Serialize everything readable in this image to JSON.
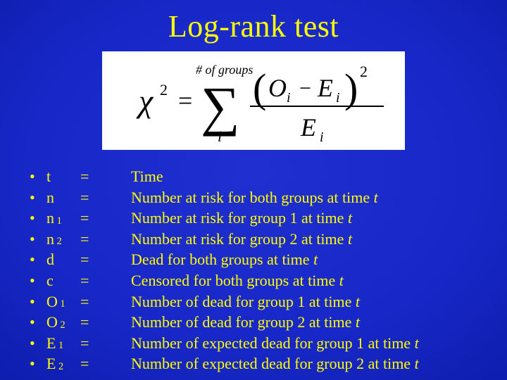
{
  "title": "Log-rank test",
  "formula": {
    "lhs": "χ",
    "lhs_sup": "2",
    "eq": "=",
    "sum_upper_label": "# of groups",
    "sum_lower": "i",
    "frac_num_open": "(",
    "frac_num_o": "O",
    "frac_num_sub1": "i",
    "frac_num_minus": "−",
    "frac_num_e": "E",
    "frac_num_sub2": "i",
    "frac_num_close": ")",
    "frac_num_sup": "2",
    "frac_den_e": "E",
    "frac_den_sub": "i",
    "background_color": "#ffffff",
    "text_color": "#000000",
    "font_family": "Times New Roman"
  },
  "definitions": [
    {
      "sym": "t",
      "sub": "",
      "desc_pre": "Time",
      "desc_post": "",
      "t_at_end": false
    },
    {
      "sym": "n",
      "sub": "",
      "desc_pre": "Number at risk for both groups at time ",
      "t_at_end": true
    },
    {
      "sym": "n",
      "sub": "1",
      "desc_pre": "Number at risk for group 1 at time ",
      "t_at_end": true
    },
    {
      "sym": "n",
      "sub": "2",
      "desc_pre": "Number at risk for group 2 at time ",
      "t_at_end": true
    },
    {
      "sym": "d",
      "sub": "",
      "desc_pre": "Dead for both groups at time ",
      "t_at_end": true
    },
    {
      "sym": "c",
      "sub": "",
      "desc_pre": "Censored for both groups at time ",
      "t_at_end": true
    },
    {
      "sym": "O",
      "sub": "1",
      "desc_pre": "Number of dead for group 1 at time ",
      "t_at_end": true
    },
    {
      "sym": "O",
      "sub": "2",
      "desc_pre": "Number of dead for group 2 at time ",
      "t_at_end": true
    },
    {
      "sym": "E",
      "sub": "1",
      "desc_pre": "Number of expected dead for group 1 at time ",
      "t_at_end": true
    },
    {
      "sym": "E",
      "sub": "2",
      "desc_pre": "Number of expected dead for group 2 at time ",
      "t_at_end": true
    }
  ],
  "colors": {
    "title_color": "#ffff00",
    "text_color": "#ffff00",
    "bg_center": "#2030d0",
    "bg_edge": "#001070"
  },
  "bullet_char": "•",
  "eq_char": "="
}
